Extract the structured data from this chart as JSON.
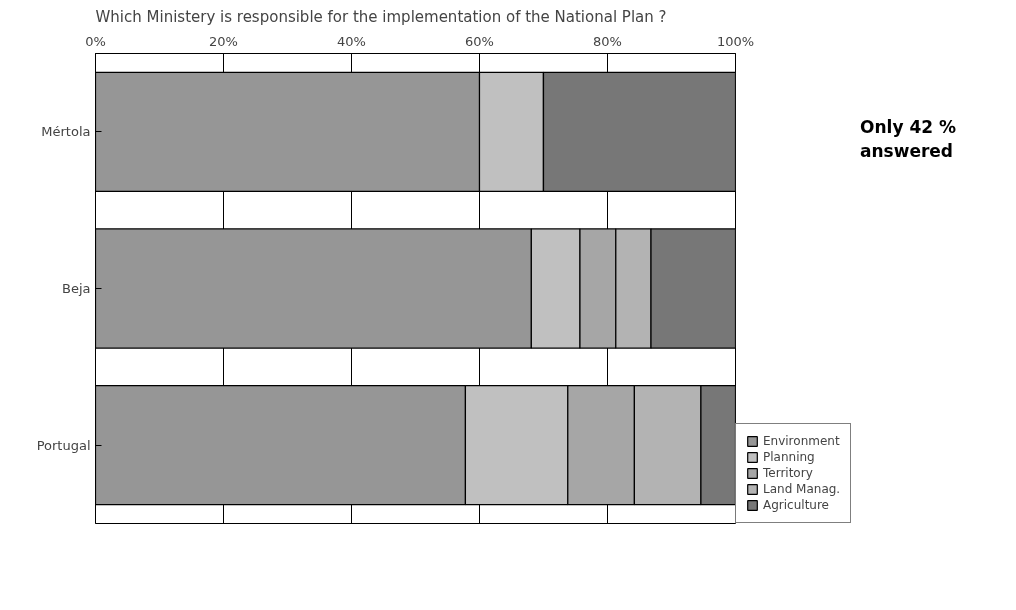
{
  "chart_data": {
    "type": "bar",
    "orientation": "horizontal",
    "stacked": true,
    "title": "Which Ministery is responsible for the implementation of the National Plan ?",
    "categories": [
      "Mértola",
      "Beja",
      "Portugal"
    ],
    "series": [
      {
        "name": "Environment",
        "color": "#969696",
        "values": [
          60,
          68.1,
          57.8
        ]
      },
      {
        "name": "Planning",
        "color": "#c0c0c0",
        "values": [
          10,
          7.6,
          16
        ]
      },
      {
        "name": "Territory",
        "color": "#a6a6a6",
        "values": [
          0,
          5.6,
          10.4
        ]
      },
      {
        "name": "Land Manag.",
        "color": "#b3b3b3",
        "values": [
          0,
          5.5,
          10.4
        ]
      },
      {
        "name": "Agriculture",
        "color": "#777777",
        "values": [
          30,
          13.2,
          5.4
        ]
      }
    ],
    "xlim": [
      0,
      100
    ],
    "xticks": [
      {
        "value": 0,
        "label": "0%"
      },
      {
        "value": 20,
        "label": "20%"
      },
      {
        "value": 40,
        "label": "40%"
      },
      {
        "value": 60,
        "label": "60%"
      },
      {
        "value": 80,
        "label": "80%"
      },
      {
        "value": 100,
        "label": "100%"
      }
    ],
    "grid": "x",
    "legend": "bottom right",
    "annotations": [
      "Only 42 % answered"
    ]
  }
}
